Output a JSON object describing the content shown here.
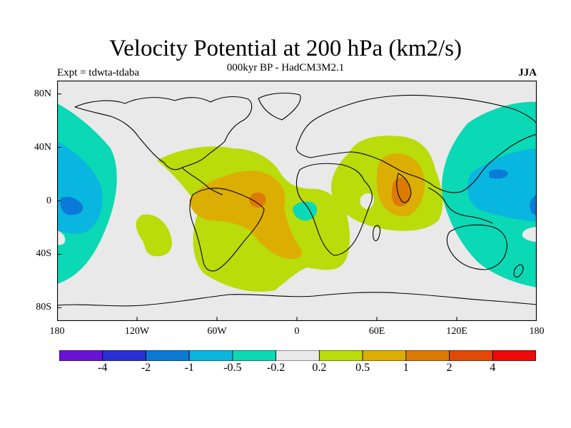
{
  "header": {
    "title": "Velocity Potential at 200 hPa (km2/s)",
    "subtitle": "000kyr BP - HadCM3M2.1",
    "experiment": "Expt = tdwta-tdaba",
    "season": "JJA"
  },
  "axes": {
    "lat_labels": [
      "80N",
      "40N",
      "0",
      "40S",
      "80S"
    ],
    "lon_labels": [
      "180",
      "120W",
      "60W",
      "0",
      "60E",
      "120E",
      "180"
    ]
  },
  "colorbar": {
    "labels": [
      "-4",
      "-2",
      "-1",
      "-0.5",
      "-0.2",
      "0.2",
      "0.5",
      "1",
      "2",
      "4"
    ],
    "colors": [
      "#6a12d6",
      "#2a2fd8",
      "#0a7ad6",
      "#09b6e0",
      "#0bd8b4",
      "#e9e9e9",
      "#b9dc0a",
      "#dcae04",
      "#dc7a04",
      "#e04a04",
      "#ec0a0a"
    ]
  },
  "chart_data": {
    "type": "heatmap",
    "title": "Velocity Potential at 200 hPa (km2/s)",
    "subtitle": "000kyr BP - HadCM3M2.1",
    "xlim": [
      -180,
      180
    ],
    "ylim": [
      -90,
      90
    ],
    "levels": [
      -4,
      -2,
      -1,
      -0.5,
      -0.2,
      0.2,
      0.5,
      1,
      2,
      4
    ],
    "features": [
      {
        "level": 0.2,
        "region": "Atlantic / South America / Africa",
        "lon": [
          -95,
          40
        ],
        "lat": [
          -65,
          40
        ]
      },
      {
        "level": 0.5,
        "region": "Tropical South America / South Atlantic",
        "lon": [
          -82,
          -5
        ],
        "lat": [
          -45,
          22
        ]
      },
      {
        "level": 1,
        "region": "Northeast Brazil",
        "lon": [
          -36,
          -28
        ],
        "lat": [
          -5,
          5
        ]
      },
      {
        "level": 0.2,
        "region": "Indian Ocean / Arabia",
        "lon": [
          25,
          100
        ],
        "lat": [
          -20,
          48
        ]
      },
      {
        "level": 0.5,
        "region": "Arabian Sea / India",
        "lon": [
          58,
          95
        ],
        "lat": [
          -12,
          35
        ]
      },
      {
        "level": 1,
        "region": "Arabian Sea",
        "lon": [
          67,
          88
        ],
        "lat": [
          -5,
          12
        ]
      },
      {
        "level": -0.2,
        "region": "Central Pacific",
        "lon": [
          -180,
          -125
        ],
        "lat": [
          -65,
          70
        ]
      },
      {
        "level": -0.5,
        "region": "Central Pacific",
        "lon": [
          -180,
          -135
        ],
        "lat": [
          -25,
          30
        ]
      },
      {
        "level": -0.2,
        "region": "West Pacific / East Asia",
        "lon": [
          110,
          180
        ],
        "lat": [
          -65,
          75
        ]
      },
      {
        "level": -0.5,
        "region": "West Pacific",
        "lon": [
          125,
          180
        ],
        "lat": [
          -10,
          50
        ]
      },
      {
        "level": -0.2,
        "region": "Gulf of Guinea",
        "lon": [
          0,
          22
        ],
        "lat": [
          -12,
          2
        ]
      },
      {
        "level": 0.2,
        "region": "Southeast Pacific",
        "lon": [
          -120,
          -95
        ],
        "lat": [
          -45,
          -10
        ]
      }
    ]
  }
}
